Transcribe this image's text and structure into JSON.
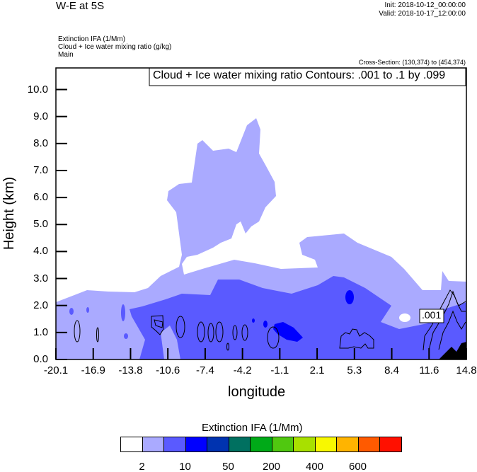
{
  "header": {
    "title": "W-E at 5S",
    "init": "Init: 2018-10-12_00:00:00",
    "valid": "Valid: 2018-10-17_12:00:00",
    "field1": "Extinction IFA   (1/Mm)",
    "field2": "Cloud + Ice water mixing ratio   (g/kg)",
    "field3": "Main",
    "cross_section": "Cross-Section: (130,374) to (454,374)"
  },
  "chart_data": {
    "type": "heatmap",
    "title": "W-E at 5S",
    "contour_title": "Cloud + Ice water mixing ratio Contours: .001 to .1 by .099",
    "contour_label": ".001",
    "xlabel": "longitude",
    "ylabel": "Height (km)",
    "xlim": [
      -20.1,
      14.8
    ],
    "ylim": [
      0,
      10.8
    ],
    "x_ticks": [
      "-20.1",
      "-16.9",
      "-13.8",
      "-10.6",
      "-7.4",
      "-4.2",
      "-1.1",
      "2.1",
      "5.3",
      "8.4",
      "11.6",
      "14.8"
    ],
    "y_ticks": [
      "0.0",
      "1.0",
      "2.0",
      "3.0",
      "4.0",
      "5.0",
      "6.0",
      "7.0",
      "8.0",
      "9.0",
      "10.0"
    ],
    "colorbar": {
      "title": "Extinction IFA  (1/Mm)",
      "colors": [
        "#ffffff",
        "#aaaaff",
        "#5a5aff",
        "#0000ff",
        "#0033b0",
        "#007060",
        "#00aa18",
        "#50c810",
        "#a8e000",
        "#f8f800",
        "#ffb400",
        "#ff5a00",
        "#ff1000"
      ],
      "labels": [
        "2",
        "10",
        "50",
        "200",
        "400",
        "600"
      ]
    }
  }
}
